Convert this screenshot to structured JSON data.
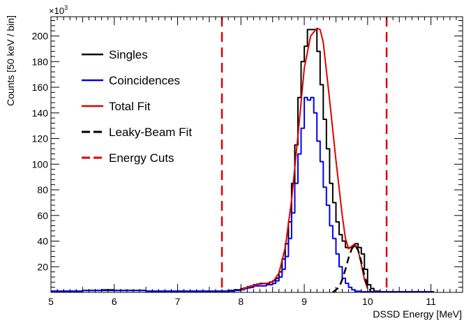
{
  "chart_data": {
    "type": "line",
    "xlabel": "DSSD Energy [MeV]",
    "ylabel": "Counts [50 keV / bin]",
    "y_multiplier": "×10",
    "y_multiplier_exp": "3",
    "xlim": [
      5,
      11.5
    ],
    "ylim": [
      0,
      215
    ],
    "x_ticks": [
      "5",
      "6",
      "7",
      "8",
      "9",
      "10",
      "11"
    ],
    "y_ticks": [
      "20",
      "40",
      "60",
      "80",
      "100",
      "120",
      "140",
      "160",
      "180",
      "200"
    ],
    "grid": false,
    "legend_position": "top-left",
    "legend": [
      {
        "label": "Singles",
        "color": "#000000",
        "dash": "solid"
      },
      {
        "label": "Coincidences",
        "color": "#0000ee",
        "dash": "solid"
      },
      {
        "label": "Total Fit",
        "color": "#dd0000",
        "dash": "solid"
      },
      {
        "label": "Leaky-Beam Fit",
        "color": "#000000",
        "dash": "dashed"
      },
      {
        "label": "Energy Cuts",
        "color": "#dd0000",
        "dash": "dashed"
      }
    ],
    "energy_cuts": [
      7.7,
      10.3
    ],
    "series": [
      {
        "name": "Singles",
        "color": "#000000",
        "style": "step",
        "bin_width": 0.05,
        "x": [
          5.0,
          5.5,
          6.0,
          6.5,
          7.0,
          7.5,
          7.7,
          7.8,
          7.9,
          8.0,
          8.05,
          8.1,
          8.15,
          8.2,
          8.25,
          8.3,
          8.35,
          8.4,
          8.45,
          8.5,
          8.55,
          8.6,
          8.65,
          8.7,
          8.75,
          8.8,
          8.85,
          8.9,
          8.95,
          9.0,
          9.05,
          9.1,
          9.15,
          9.2,
          9.25,
          9.3,
          9.35,
          9.4,
          9.45,
          9.5,
          9.55,
          9.6,
          9.65,
          9.7,
          9.75,
          9.8,
          9.85,
          9.9,
          9.95,
          10.0,
          10.05,
          10.1,
          10.2,
          10.5,
          11.0
        ],
        "y": [
          1,
          1.5,
          1.5,
          1,
          1,
          1,
          1,
          1.5,
          2,
          3,
          3.5,
          4.5,
          5,
          6,
          6.5,
          7,
          7,
          7,
          8,
          9,
          11,
          16,
          26,
          38,
          55,
          85,
          115,
          152,
          180,
          192,
          205,
          205,
          205,
          188,
          162,
          135,
          112,
          85,
          70,
          55,
          45,
          40,
          35,
          35,
          36,
          38,
          35,
          30,
          18,
          6,
          3,
          1,
          0.5,
          0.5,
          0.5
        ]
      },
      {
        "name": "Coincidences",
        "color": "#0000ee",
        "style": "step",
        "bin_width": 0.05,
        "x": [
          5.0,
          5.5,
          5.8,
          6.0,
          6.5,
          7.0,
          7.5,
          7.7,
          7.8,
          7.9,
          8.0,
          8.05,
          8.1,
          8.15,
          8.2,
          8.25,
          8.3,
          8.35,
          8.4,
          8.45,
          8.5,
          8.55,
          8.6,
          8.65,
          8.7,
          8.75,
          8.8,
          8.85,
          8.9,
          8.95,
          9.0,
          9.05,
          9.1,
          9.15,
          9.2,
          9.25,
          9.3,
          9.35,
          9.4,
          9.45,
          9.5,
          9.55,
          9.6,
          9.65,
          9.7,
          9.75,
          9.8,
          9.85,
          9.9,
          9.95,
          10.0,
          10.5,
          11.0
        ],
        "y": [
          1,
          1.5,
          2,
          1.5,
          1,
          1,
          1,
          1,
          1,
          1.5,
          2,
          3,
          3.5,
          4,
          5,
          5,
          5,
          5,
          6,
          6,
          7,
          9,
          12,
          18,
          28,
          42,
          62,
          85,
          108,
          128,
          152,
          150,
          152,
          140,
          118,
          102,
          82,
          68,
          52,
          42,
          30,
          20,
          11,
          7,
          4,
          2,
          1,
          1,
          0.5,
          0.5,
          0.5,
          0.5,
          0.5
        ]
      },
      {
        "name": "Total Fit",
        "color": "#dd0000",
        "style": "line",
        "x": [
          8.0,
          8.1,
          8.2,
          8.3,
          8.4,
          8.5,
          8.6,
          8.7,
          8.8,
          8.9,
          9.0,
          9.1,
          9.2,
          9.25,
          9.3,
          9.4,
          9.5,
          9.6,
          9.65,
          9.7,
          9.75,
          9.8,
          9.85,
          9.9,
          9.95,
          10.0
        ],
        "y": [
          2,
          4,
          5.5,
          6.5,
          7,
          8,
          15,
          35,
          72,
          122,
          175,
          200,
          206,
          205,
          195,
          150,
          103,
          60,
          42,
          34,
          36,
          38,
          33,
          22,
          10,
          3
        ]
      },
      {
        "name": "Leaky-Beam Fit",
        "color": "#000000",
        "style": "dashed",
        "x": [
          9.45,
          9.55,
          9.6,
          9.65,
          9.7,
          9.75,
          9.8,
          9.85,
          9.9,
          9.95,
          10.0,
          10.05
        ],
        "y": [
          0,
          4,
          10,
          18,
          27,
          34,
          37,
          33,
          24,
          13,
          5,
          1
        ]
      }
    ]
  }
}
